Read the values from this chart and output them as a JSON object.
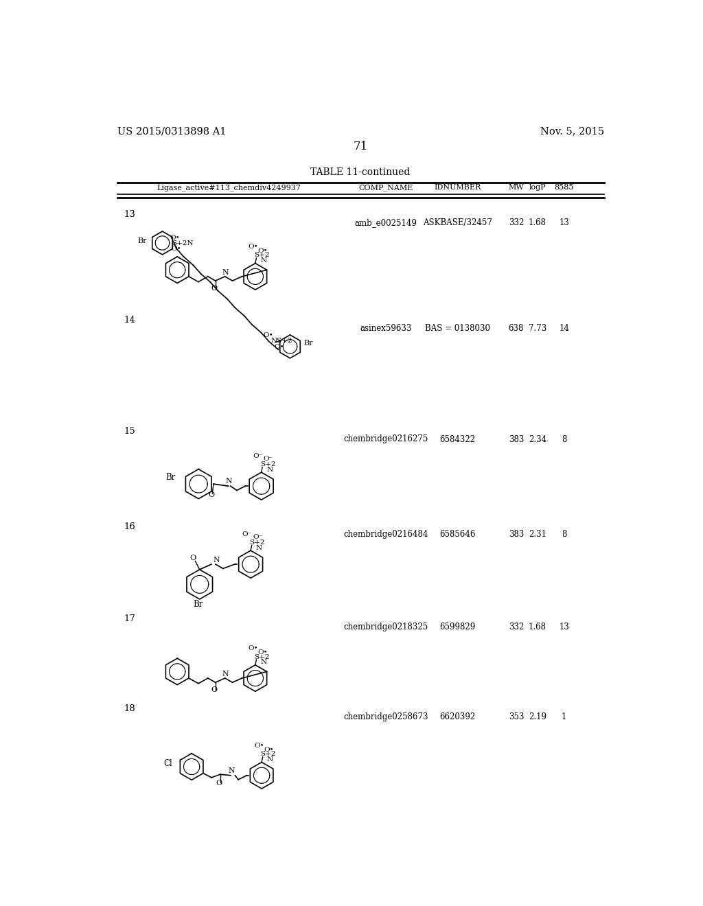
{
  "page_header_left": "US 2015/0313898 A1",
  "page_header_right": "Nov. 5, 2015",
  "page_number": "71",
  "table_title": "TABLE 11-continued",
  "col_headers": [
    "Ligase_active#113_chemdiv4249937",
    "COMP_NAME",
    "IDNUMBER",
    "MW",
    "logP",
    "8585"
  ],
  "rows": [
    {
      "num": "13",
      "comp_name": "amb_e0025149",
      "idnumber": "ASKBASE/32457",
      "mw": "332",
      "logp": "1.68",
      "val": "13"
    },
    {
      "num": "14",
      "comp_name": "asinex59633",
      "idnumber": "BAS = 0138030",
      "mw": "638",
      "logp": "7.73",
      "val": "14"
    },
    {
      "num": "15",
      "comp_name": "chembridge0216275",
      "idnumber": "6584322",
      "mw": "383",
      "logp": "2.34",
      "val": "8"
    },
    {
      "num": "16",
      "comp_name": "chembridge0216484",
      "idnumber": "6585646",
      "mw": "383",
      "logp": "2.31",
      "val": "8"
    },
    {
      "num": "17",
      "comp_name": "chembridge0218325",
      "idnumber": "6599829",
      "mw": "332",
      "logp": "1.68",
      "val": "13"
    },
    {
      "num": "18",
      "comp_name": "chembridge0258673",
      "idnumber": "6620392",
      "mw": "353",
      "logp": "2.19",
      "val": "1"
    }
  ],
  "background": "#ffffff",
  "text_color": "#000000",
  "line_color": "#000000",
  "row_y_tops": [
    205,
    405,
    615,
    795,
    970,
    1140
  ],
  "row_y_data": [
    220,
    420,
    630,
    810,
    985,
    1155
  ]
}
